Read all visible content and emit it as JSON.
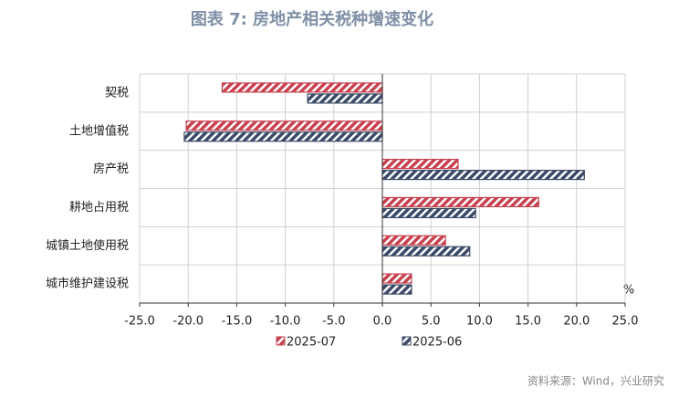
{
  "chart_data": {
    "type": "hbar",
    "title": "图表 7:  房地产相关税种增速变化",
    "unit_label": "%",
    "source": "资料来源：Wind，兴业研究",
    "categories": [
      "契税",
      "土地增值税",
      "房产税",
      "耕地占用税",
      "城镇土地使用税",
      "城市维护建设税"
    ],
    "series": [
      {
        "name": "2025-07",
        "color": "#c8414f",
        "values": [
          -16.5,
          -20.2,
          7.8,
          16.1,
          6.5,
          3.0
        ]
      },
      {
        "name": "2025-06",
        "color": "#3b4a66",
        "values": [
          -7.7,
          -20.4,
          20.8,
          9.6,
          9.0,
          3.0
        ]
      }
    ],
    "xlim": [
      -25,
      25
    ],
    "xticks": [
      {
        "value": -25,
        "label": "-25.0"
      },
      {
        "value": -20,
        "label": "-20.0"
      },
      {
        "value": -15,
        "label": "-15.0"
      },
      {
        "value": -10,
        "label": "-10.0"
      },
      {
        "value": -5,
        "label": "-5.0"
      },
      {
        "value": 0,
        "label": "0.0"
      },
      {
        "value": 5,
        "label": "5.0"
      },
      {
        "value": 10,
        "label": "10.0"
      },
      {
        "value": 15,
        "label": "15.0"
      },
      {
        "value": 20,
        "label": "20.0"
      },
      {
        "value": 25,
        "label": "25.0"
      }
    ],
    "grid": true,
    "legend": "bottom"
  }
}
